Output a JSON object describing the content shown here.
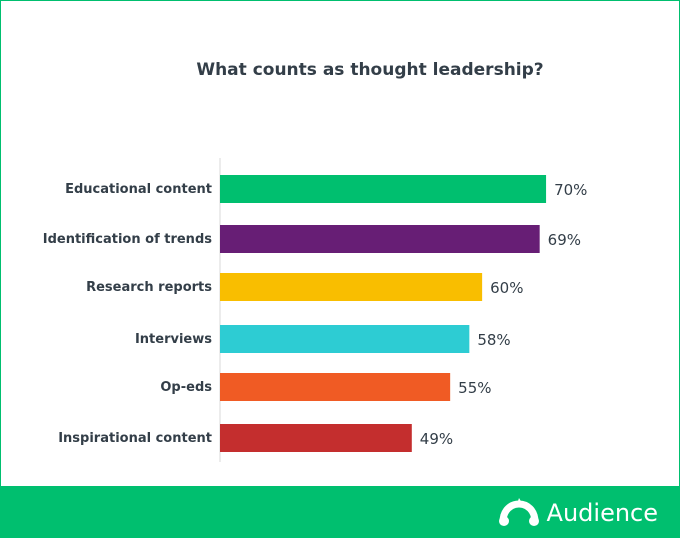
{
  "chart_data": {
    "type": "bar",
    "orientation": "horizontal",
    "title": "What counts as thought leadership?",
    "categories": [
      "Educational content",
      "Identification of trends",
      "Research reports",
      "Interviews",
      "Op-eds",
      "Inspirational content"
    ],
    "values": [
      70,
      69,
      60,
      58,
      55,
      49
    ],
    "value_labels": [
      "70%",
      "69%",
      "60%",
      "58%",
      "55%",
      "49%"
    ],
    "colors": [
      "#00bf6f",
      "#671e75",
      "#f9be00",
      "#2dccd3",
      "#f05b24",
      "#c42e2e"
    ],
    "xlim": [
      19,
      80
    ],
    "grid": false,
    "legend": "none"
  },
  "brand": {
    "name": "Audience",
    "icon": "monkey-logo-icon",
    "color": "#00bf6f"
  }
}
